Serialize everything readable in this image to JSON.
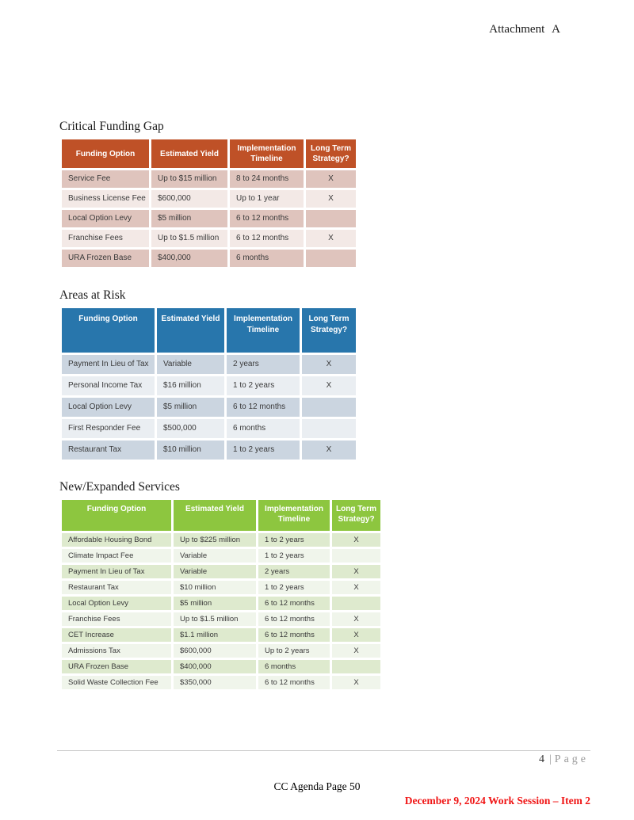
{
  "header": {
    "attachment_label": "Attachment A"
  },
  "tables": [
    {
      "title": "Critical Funding Gap",
      "theme": "orange",
      "colors": {
        "header": "#BF5127",
        "row_odd": "#DFC4BD",
        "row_even": "#F3E9E6"
      },
      "columns": [
        "Funding Option",
        "Estimated Yield",
        "Implementation Timeline",
        "Long Term Strategy?"
      ],
      "rows": [
        [
          "Service Fee",
          "Up to $15 million",
          "8 to 24 months",
          "X"
        ],
        [
          "Business License Fee",
          "$600,000",
          "Up to 1 year",
          "X"
        ],
        [
          "Local Option Levy",
          "$5 million",
          "6 to 12 months",
          ""
        ],
        [
          "Franchise Fees",
          "Up to $1.5 million",
          "6 to 12 months",
          "X"
        ],
        [
          "URA Frozen Base",
          "$400,000",
          "6 months",
          ""
        ]
      ]
    },
    {
      "title": "Areas at Risk",
      "theme": "blue",
      "colors": {
        "header": "#2876AC",
        "row_odd": "#CBD5E0",
        "row_even": "#EAEEF2"
      },
      "columns": [
        "Funding Option",
        "Estimated Yield",
        "Implementation Timeline",
        "Long Term Strategy?"
      ],
      "rows": [
        [
          "Payment In Lieu of Tax",
          "Variable",
          "2 years",
          "X"
        ],
        [
          "Personal Income Tax",
          "$16 million",
          "1 to 2 years",
          "X"
        ],
        [
          "Local Option Levy",
          "$5 million",
          "6 to 12 months",
          ""
        ],
        [
          "First Responder Fee",
          "$500,000",
          "6 months",
          ""
        ],
        [
          "Restaurant Tax",
          "$10 million",
          "1 to 2 years",
          "X"
        ]
      ]
    },
    {
      "title": "New/Expanded Services",
      "theme": "green",
      "colors": {
        "header": "#8DC63F",
        "row_odd": "#DEEACE",
        "row_even": "#F0F5EB"
      },
      "columns": [
        "Funding Option",
        "Estimated Yield",
        "Implementation Timeline",
        "Long Term Strategy?"
      ],
      "rows": [
        [
          "Affordable Housing Bond",
          "Up to $225 million",
          "1 to 2 years",
          "X"
        ],
        [
          "Climate Impact Fee",
          "Variable",
          "1 to 2 years",
          ""
        ],
        [
          "Payment In Lieu of Tax",
          "Variable",
          "2 years",
          "X"
        ],
        [
          "Restaurant Tax",
          "$10 million",
          "1 to 2 years",
          "X"
        ],
        [
          "Local Option Levy",
          "$5 million",
          "6 to 12 months",
          ""
        ],
        [
          "Franchise Fees",
          "Up to $1.5 million",
          "6 to 12 months",
          "X"
        ],
        [
          "CET Increase",
          "$1.1 million",
          "6 to 12 months",
          "X"
        ],
        [
          "Admissions Tax",
          "$600,000",
          "Up to 2 years",
          "X"
        ],
        [
          "URA Frozen Base",
          "$400,000",
          "6 months",
          ""
        ],
        [
          "Solid Waste Collection Fee",
          "$350,000",
          "6 to 12 months",
          "X"
        ]
      ]
    }
  ],
  "footer": {
    "page_number": "4",
    "separator": "|",
    "page_word": "Page",
    "agenda_text": "CC Agenda Page 50",
    "session_text": "December 9, 2024 Work Session – Item 2",
    "session_color": "#F01515"
  }
}
